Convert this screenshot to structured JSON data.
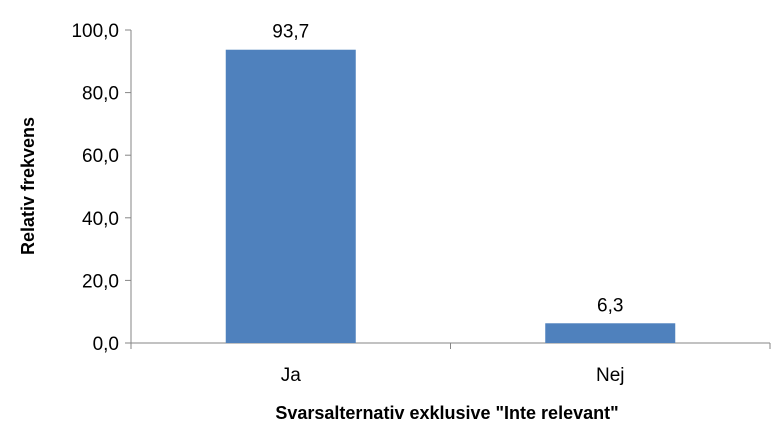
{
  "chart_data": {
    "type": "bar",
    "categories": [
      "Ja",
      "Nej"
    ],
    "values": [
      93.7,
      6.3
    ],
    "data_labels": [
      "93,7",
      "6,3"
    ],
    "xlabel": "Svarsalternativ exklusive \"Inte relevant\"",
    "ylabel": "Relativ frekvens",
    "ylim": [
      0,
      100
    ],
    "yticks": [
      0,
      20,
      40,
      60,
      80,
      100
    ],
    "ytick_labels": [
      "0,0",
      "20,0",
      "40,0",
      "60,0",
      "80,0",
      "100,0"
    ],
    "grid": false,
    "legend": "none",
    "bar_color": "#4F81BD"
  }
}
